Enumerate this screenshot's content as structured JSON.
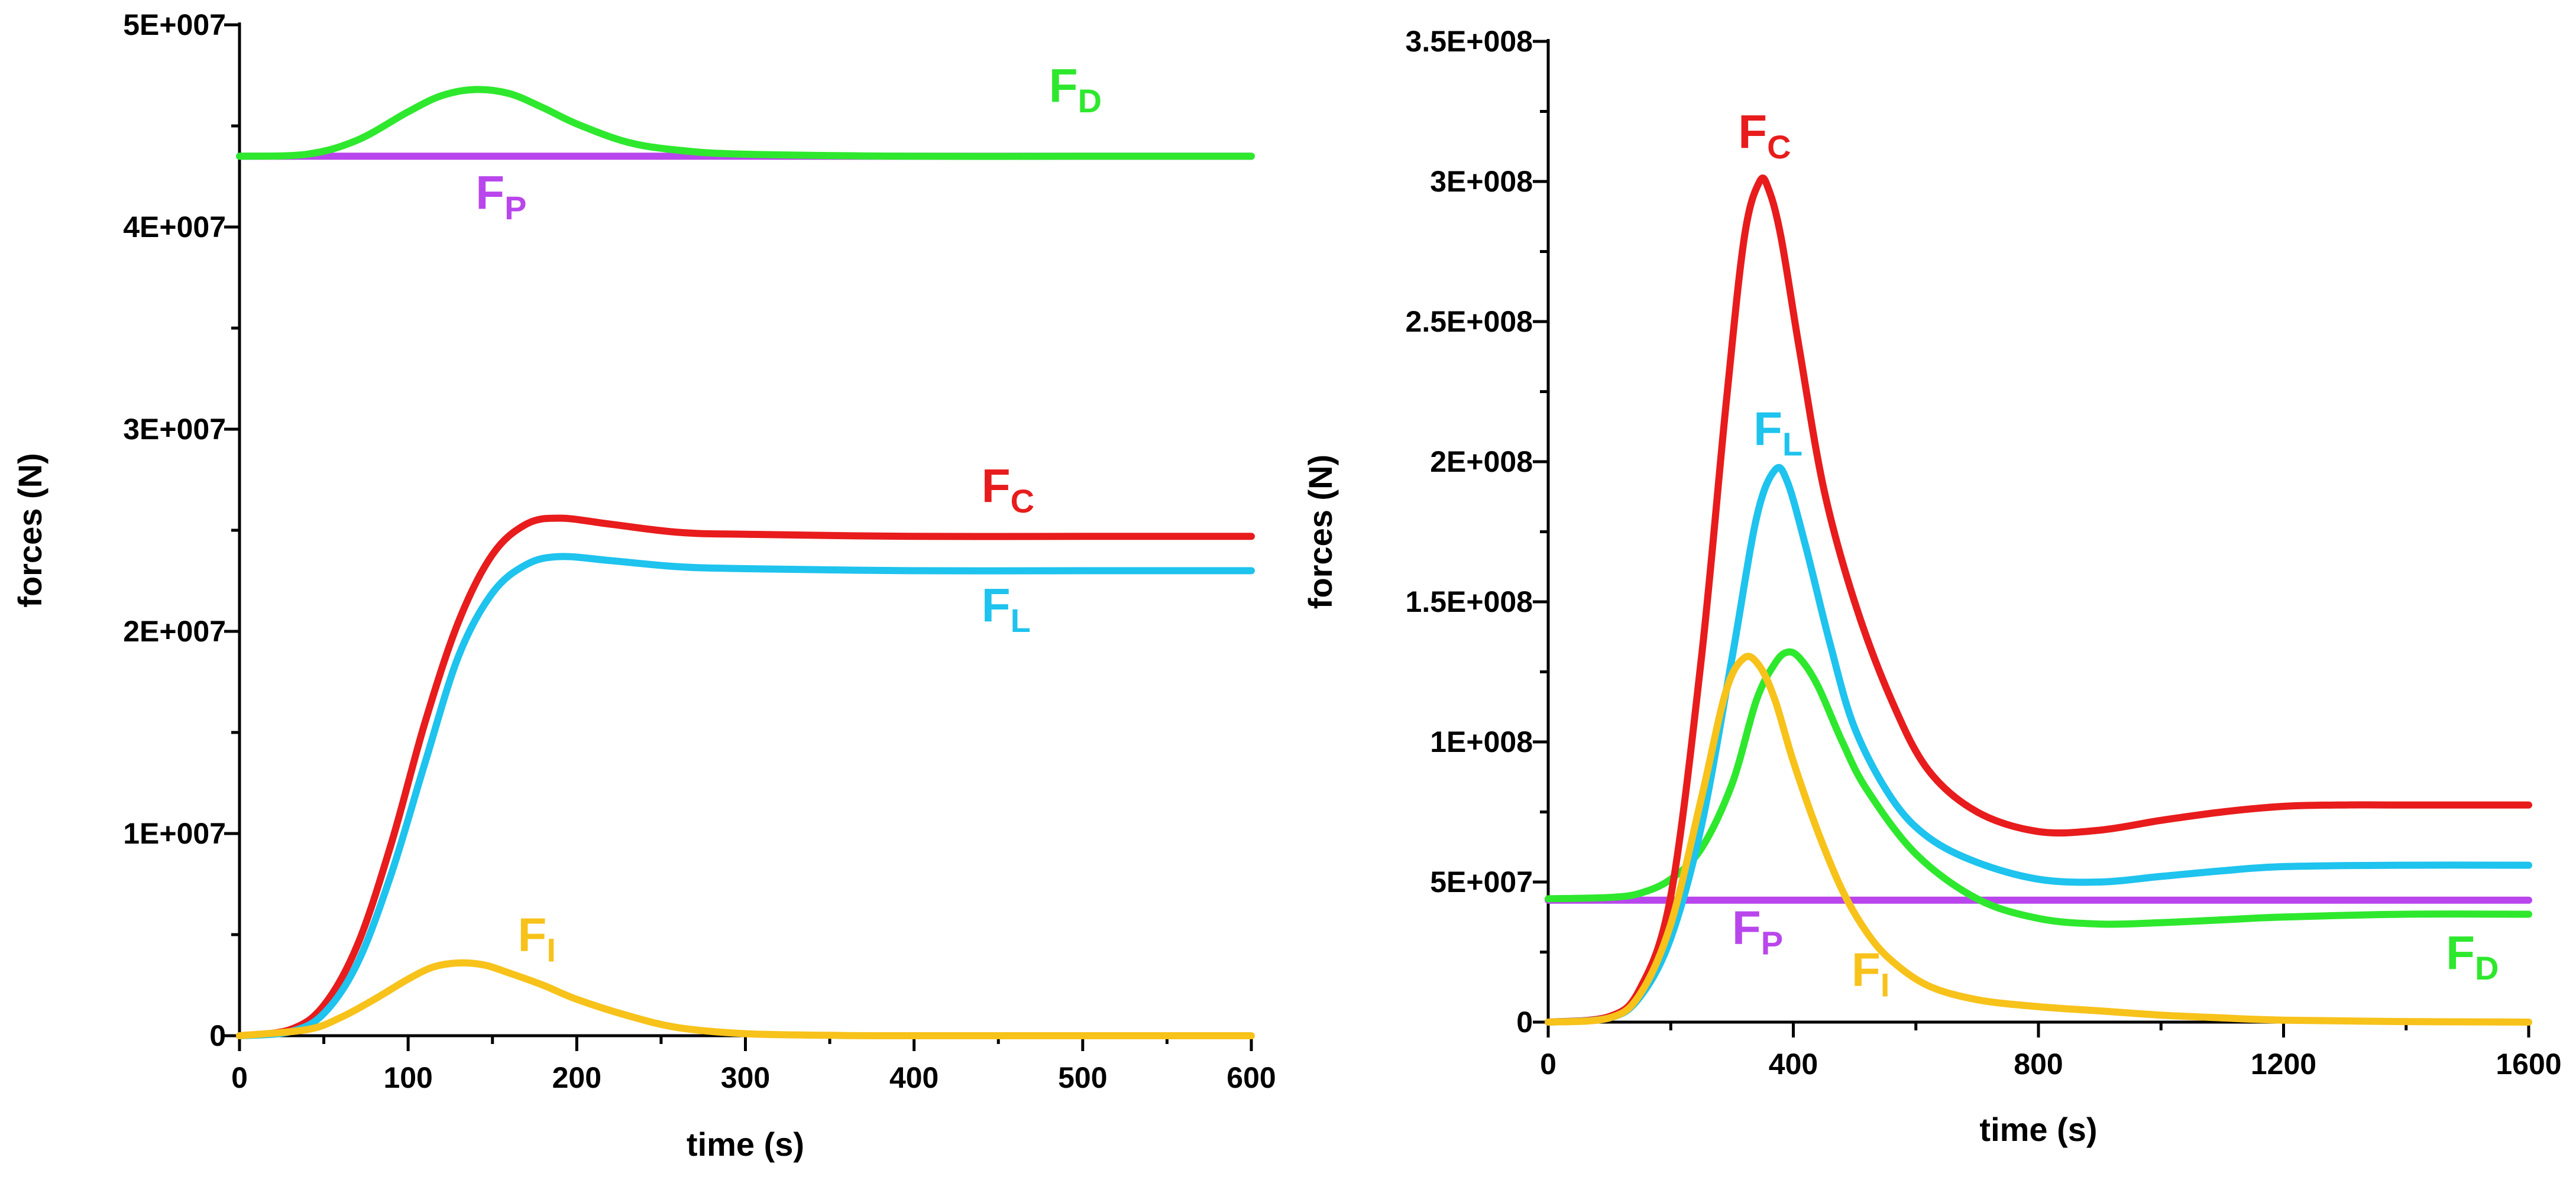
{
  "chart_data": [
    {
      "type": "line",
      "xlabel": "time (s)",
      "ylabel": "forces (N)",
      "xlim": [
        0,
        600
      ],
      "ylim": [
        0,
        50000000
      ],
      "x_ticks": [
        0,
        100,
        200,
        300,
        400,
        500,
        600
      ],
      "x_tick_labels": [
        "0",
        "100",
        "200",
        "300",
        "400",
        "500",
        "600"
      ],
      "y_ticks": [
        0,
        10000000,
        20000000,
        30000000,
        40000000,
        50000000
      ],
      "y_tick_labels": [
        "0",
        "1E+007",
        "2E+007",
        "3E+007",
        "4E+007",
        "5E+007"
      ],
      "series": [
        {
          "name": "F_P",
          "label_main": "F",
          "label_sub": "P",
          "color": "#b946ec",
          "x": [
            0,
            600
          ],
          "y": [
            43500000,
            43500000
          ]
        },
        {
          "name": "F_D",
          "label_main": "F",
          "label_sub": "D",
          "color": "#2ee82e",
          "x": [
            0,
            40,
            70,
            100,
            120,
            140,
            160,
            180,
            200,
            230,
            260,
            300,
            400,
            500,
            600
          ],
          "y": [
            43500000,
            43600000,
            44300000,
            45700000,
            46500000,
            46800000,
            46600000,
            45900000,
            45100000,
            44200000,
            43800000,
            43600000,
            43500000,
            43500000,
            43500000
          ]
        },
        {
          "name": "F_C",
          "label_main": "F",
          "label_sub": "C",
          "color": "#e81c1c",
          "x": [
            0,
            30,
            50,
            70,
            90,
            110,
            130,
            150,
            170,
            190,
            220,
            260,
            300,
            400,
            500,
            600
          ],
          "y": [
            0,
            300000,
            1500000,
            4500000,
            9500000,
            15500000,
            20500000,
            23800000,
            25300000,
            25600000,
            25300000,
            24900000,
            24800000,
            24700000,
            24700000,
            24700000
          ]
        },
        {
          "name": "F_L",
          "label_main": "F",
          "label_sub": "L",
          "color": "#1ec3ee",
          "x": [
            0,
            30,
            50,
            70,
            90,
            110,
            130,
            150,
            170,
            190,
            220,
            260,
            300,
            400,
            500,
            600
          ],
          "y": [
            0,
            200000,
            1100000,
            3600000,
            8000000,
            13500000,
            18800000,
            21900000,
            23300000,
            23700000,
            23500000,
            23200000,
            23100000,
            23000000,
            23000000,
            23000000
          ]
        },
        {
          "name": "F_I",
          "label_main": "F",
          "label_sub": "I",
          "color": "#f7c21a",
          "x": [
            0,
            40,
            60,
            80,
            100,
            115,
            130,
            145,
            160,
            180,
            200,
            230,
            260,
            300,
            350,
            400,
            600
          ],
          "y": [
            0,
            300000,
            900000,
            1800000,
            2800000,
            3400000,
            3600000,
            3500000,
            3100000,
            2500000,
            1800000,
            1000000,
            400000,
            100000,
            20000,
            0,
            0
          ]
        }
      ],
      "labels": [
        {
          "series": "F_D",
          "x": 480,
          "y": 46200000
        },
        {
          "series": "F_P",
          "x": 140,
          "y": 40900000
        },
        {
          "series": "F_C",
          "x": 440,
          "y": 26400000
        },
        {
          "series": "F_L",
          "x": 440,
          "y": 20500000
        },
        {
          "series": "F_I",
          "x": 165,
          "y": 4200000
        }
      ]
    },
    {
      "type": "line",
      "xlabel": "time (s)",
      "ylabel": "forces (N)",
      "xlim": [
        0,
        1600
      ],
      "ylim": [
        0,
        350000000
      ],
      "x_ticks": [
        0,
        400,
        800,
        1200,
        1600
      ],
      "x_tick_labels": [
        "0",
        "400",
        "800",
        "1200",
        "1600"
      ],
      "y_ticks": [
        0,
        50000000,
        100000000,
        150000000,
        200000000,
        250000000,
        300000000,
        350000000
      ],
      "y_tick_labels": [
        "0",
        "5E+007",
        "1E+008",
        "1.5E+008",
        "2E+008",
        "2.5E+008",
        "3E+008",
        "3.5E+008"
      ],
      "series": [
        {
          "name": "F_P",
          "label_main": "F",
          "label_sub": "P",
          "color": "#b946ec",
          "x": [
            0,
            1600
          ],
          "y": [
            43500000,
            43500000
          ]
        },
        {
          "name": "F_D",
          "label_main": "F",
          "label_sub": "D",
          "color": "#2ee82e",
          "x": [
            0,
            100,
            150,
            200,
            250,
            300,
            340,
            370,
            390,
            410,
            440,
            480,
            520,
            600,
            700,
            800,
            900,
            1000,
            1100,
            1200,
            1400,
            1600
          ],
          "y": [
            44000000,
            44500000,
            46000000,
            51000000,
            62000000,
            85000000,
            115000000,
            128000000,
            132000000,
            130000000,
            120000000,
            100000000,
            83000000,
            60000000,
            44000000,
            37000000,
            35000000,
            35500000,
            36500000,
            37500000,
            38500000,
            38500000
          ]
        },
        {
          "name": "F_C",
          "label_main": "F",
          "label_sub": "C",
          "color": "#e81c1c",
          "x": [
            0,
            100,
            150,
            200,
            250,
            290,
            320,
            345,
            360,
            380,
            410,
            450,
            500,
            560,
            620,
            700,
            800,
            900,
            1000,
            1100,
            1200,
            1300,
            1400,
            1600
          ],
          "y": [
            0,
            2000000,
            12000000,
            45000000,
            130000000,
            220000000,
            280000000,
            300000000,
            297000000,
            280000000,
            240000000,
            190000000,
            150000000,
            115000000,
            90000000,
            75000000,
            68000000,
            68500000,
            72000000,
            75000000,
            77000000,
            77500000,
            77500000,
            77500000
          ]
        },
        {
          "name": "F_L",
          "label_main": "F",
          "label_sub": "L",
          "color": "#1ec3ee",
          "x": [
            0,
            100,
            150,
            200,
            250,
            300,
            340,
            370,
            390,
            420,
            460,
            500,
            560,
            620,
            700,
            800,
            900,
            1000,
            1100,
            1200,
            1400,
            1600
          ],
          "y": [
            0,
            1500000,
            9000000,
            30000000,
            70000000,
            130000000,
            180000000,
            197000000,
            193000000,
            170000000,
            135000000,
            105000000,
            80000000,
            66000000,
            57000000,
            51000000,
            50000000,
            52000000,
            54000000,
            55500000,
            56000000,
            56000000
          ]
        },
        {
          "name": "F_I",
          "label_main": "F",
          "label_sub": "I",
          "color": "#f7c21a",
          "x": [
            0,
            100,
            150,
            200,
            250,
            290,
            320,
            345,
            370,
            400,
            440,
            480,
            520,
            560,
            620,
            700,
            800,
            900,
            1000,
            1100,
            1200,
            1400,
            1600
          ],
          "y": [
            0,
            1500000,
            10000000,
            35000000,
            80000000,
            118000000,
            130000000,
            127000000,
            115000000,
            93000000,
            68000000,
            47000000,
            32000000,
            22000000,
            13000000,
            8000000,
            5500000,
            4000000,
            2500000,
            1500000,
            700000,
            200000,
            0
          ]
        }
      ],
      "labels": [
        {
          "series": "F_C",
          "x": 310,
          "y": 312000000
        },
        {
          "series": "F_L",
          "x": 335,
          "y": 206000000
        },
        {
          "series": "F_P",
          "x": 300,
          "y": 28000000
        },
        {
          "series": "F_I",
          "x": 495,
          "y": 13000000
        },
        {
          "series": "F_D",
          "x": 1465,
          "y": 19000000
        }
      ]
    }
  ]
}
